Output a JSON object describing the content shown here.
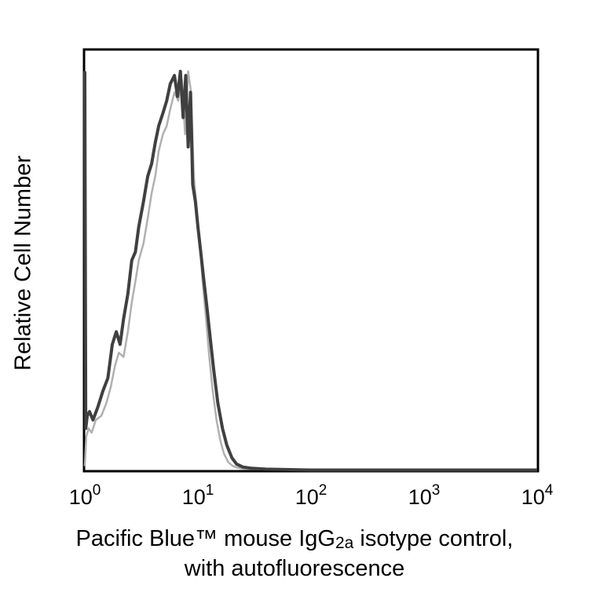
{
  "chart_data": {
    "type": "line",
    "xscale": "log",
    "xlim": [
      1,
      10000
    ],
    "ylim": [
      0,
      1.0
    ],
    "grid": false,
    "legend": "none",
    "ylabel": "Relative Cell Number",
    "xlabel_line1_pre": "Pacific Blue™ mouse IgG",
    "xlabel_line1_sub": "2a",
    "xlabel_line1_post": " isotype control,",
    "xlabel_line2": "with autofluorescence",
    "xticks": [
      {
        "value": 1,
        "base": "10",
        "exp": "0"
      },
      {
        "value": 10,
        "base": "10",
        "exp": "1"
      },
      {
        "value": 100,
        "base": "10",
        "exp": "2"
      },
      {
        "value": 1000,
        "base": "10",
        "exp": "3"
      },
      {
        "value": 10000,
        "base": "10",
        "exp": "4"
      }
    ],
    "series": [
      {
        "color": "#b0b0b0",
        "x": [
          1.0,
          1.03,
          1.08,
          1.15,
          1.25,
          1.4,
          1.55,
          1.7,
          1.85,
          2.0,
          2.2,
          2.4,
          2.6,
          2.8,
          3.0,
          3.3,
          3.6,
          3.9,
          4.2,
          4.5,
          4.9,
          5.3,
          5.7,
          6.2,
          6.7,
          7.2,
          7.7,
          8.2,
          8.7,
          9.2,
          9.8,
          10.4,
          11.0,
          11.8,
          12.6,
          13.5,
          14.6,
          15.8,
          17.0,
          18.5,
          20.0,
          22.0,
          25.0,
          30.0,
          40.0,
          60.0,
          100.0,
          300.0,
          1000.0,
          10000.0
        ],
        "y": [
          0.01,
          0.08,
          0.1,
          0.09,
          0.12,
          0.13,
          0.16,
          0.2,
          0.25,
          0.28,
          0.27,
          0.33,
          0.4,
          0.45,
          0.5,
          0.54,
          0.6,
          0.66,
          0.7,
          0.76,
          0.8,
          0.82,
          0.86,
          0.9,
          0.88,
          0.93,
          0.8,
          0.95,
          0.9,
          0.7,
          0.62,
          0.54,
          0.45,
          0.36,
          0.27,
          0.19,
          0.12,
          0.07,
          0.04,
          0.02,
          0.012,
          0.007,
          0.004,
          0.003,
          0.002,
          0.002,
          0.001,
          0.001,
          0.001,
          0.001
        ]
      },
      {
        "color": "#404040",
        "x": [
          1.0,
          1.02,
          1.05,
          1.1,
          1.18,
          1.3,
          1.45,
          1.6,
          1.75,
          1.9,
          2.05,
          2.2,
          2.4,
          2.6,
          2.8,
          3.0,
          3.3,
          3.6,
          3.9,
          4.2,
          4.5,
          4.9,
          5.3,
          5.7,
          6.2,
          6.6,
          7.0,
          7.4,
          7.8,
          8.2,
          8.6,
          9.0,
          9.5,
          10.0,
          10.6,
          11.2,
          12.0,
          12.8,
          13.8,
          15.0,
          16.5,
          18.0,
          20.0,
          22.0,
          25.0,
          30.0,
          40.0,
          60.0,
          100.0,
          300.0,
          1000.0,
          10000.0
        ],
        "y": [
          0.95,
          0.1,
          0.13,
          0.14,
          0.12,
          0.15,
          0.19,
          0.22,
          0.3,
          0.33,
          0.3,
          0.36,
          0.42,
          0.5,
          0.52,
          0.58,
          0.64,
          0.7,
          0.73,
          0.78,
          0.82,
          0.85,
          0.88,
          0.92,
          0.94,
          0.89,
          0.95,
          0.84,
          0.94,
          0.77,
          0.9,
          0.68,
          0.64,
          0.58,
          0.52,
          0.46,
          0.39,
          0.32,
          0.24,
          0.16,
          0.1,
          0.06,
          0.03,
          0.015,
          0.008,
          0.005,
          0.003,
          0.002,
          0.001,
          0.001,
          0.001,
          0.001
        ]
      }
    ]
  }
}
